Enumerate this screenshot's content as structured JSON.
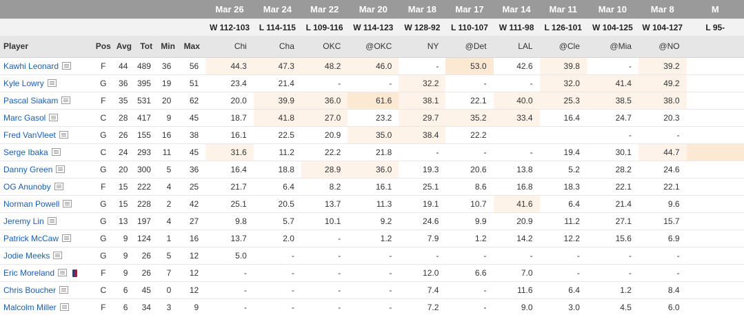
{
  "columns": {
    "player": "Player",
    "pos": "Pos",
    "avg": "Avg",
    "tot": "Tot",
    "min": "Min",
    "max": "Max"
  },
  "games": [
    {
      "date": "Mar 26",
      "result": "W 112-103",
      "opp": "Chi"
    },
    {
      "date": "Mar 24",
      "result": "L 114-115",
      "opp": "Cha"
    },
    {
      "date": "Mar 22",
      "result": "L 109-116",
      "opp": "OKC"
    },
    {
      "date": "Mar 20",
      "result": "W 114-123",
      "opp": "@OKC"
    },
    {
      "date": "Mar 18",
      "result": "W 128-92",
      "opp": "NY"
    },
    {
      "date": "Mar 17",
      "result": "L 110-107",
      "opp": "@Det"
    },
    {
      "date": "Mar 14",
      "result": "W 111-98",
      "opp": "LAL"
    },
    {
      "date": "Mar 11",
      "result": "L 126-101",
      "opp": "@Cle"
    },
    {
      "date": "Mar 10",
      "result": "W 104-125",
      "opp": "@Mia"
    },
    {
      "date": "Mar 8",
      "result": "W 104-127",
      "opp": "@NO"
    },
    {
      "date": "M",
      "result": "L 95-",
      "opp": ""
    }
  ],
  "players": [
    {
      "name": "Kawhi Leonard",
      "pos": "F",
      "avg": "44",
      "tot": "489",
      "min": "36",
      "max": "56",
      "scores": [
        "44.3",
        "47.3",
        "48.2",
        "46.0",
        "-",
        "53.0",
        "42.6",
        "39.8",
        "-",
        "39.2",
        ""
      ],
      "heat": [
        1,
        1,
        1,
        1,
        0,
        2,
        0,
        1,
        0,
        1,
        0
      ]
    },
    {
      "name": "Kyle Lowry",
      "pos": "G",
      "avg": "36",
      "tot": "395",
      "min": "19",
      "max": "51",
      "scores": [
        "23.4",
        "21.4",
        "-",
        "-",
        "32.2",
        "-",
        "-",
        "32.0",
        "41.4",
        "49.2",
        ""
      ],
      "heat": [
        0,
        0,
        0,
        0,
        1,
        0,
        0,
        1,
        1,
        1,
        0
      ]
    },
    {
      "name": "Pascal Siakam",
      "pos": "F",
      "avg": "35",
      "tot": "531",
      "min": "20",
      "max": "62",
      "scores": [
        "20.0",
        "39.9",
        "36.0",
        "61.6",
        "38.1",
        "22.1",
        "40.0",
        "25.3",
        "38.5",
        "38.0",
        ""
      ],
      "heat": [
        0,
        1,
        1,
        2,
        1,
        0,
        1,
        1,
        1,
        1,
        0
      ]
    },
    {
      "name": "Marc Gasol",
      "pos": "C",
      "avg": "28",
      "tot": "417",
      "min": "9",
      "max": "45",
      "scores": [
        "18.7",
        "41.8",
        "27.0",
        "23.2",
        "29.7",
        "35.2",
        "33.4",
        "16.4",
        "24.7",
        "20.3",
        ""
      ],
      "heat": [
        0,
        1,
        1,
        0,
        1,
        1,
        1,
        0,
        0,
        0,
        0
      ]
    },
    {
      "name": "Fred VanVleet",
      "pos": "G",
      "avg": "26",
      "tot": "155",
      "min": "16",
      "max": "38",
      "scores": [
        "16.1",
        "22.5",
        "20.9",
        "35.0",
        "38.4",
        "22.2",
        "",
        "",
        "-",
        "-",
        ""
      ],
      "heat": [
        0,
        0,
        0,
        1,
        1,
        0,
        0,
        0,
        0,
        0,
        0
      ]
    },
    {
      "name": "Serge Ibaka",
      "pos": "C",
      "avg": "24",
      "tot": "293",
      "min": "11",
      "max": "45",
      "scores": [
        "31.6",
        "11.2",
        "22.2",
        "21.8",
        "-",
        "-",
        "-",
        "19.4",
        "30.1",
        "44.7",
        ""
      ],
      "heat": [
        1,
        0,
        0,
        0,
        0,
        0,
        0,
        0,
        0,
        1,
        2
      ]
    },
    {
      "name": "Danny Green",
      "pos": "G",
      "avg": "20",
      "tot": "300",
      "min": "5",
      "max": "36",
      "scores": [
        "16.4",
        "18.8",
        "28.9",
        "36.0",
        "19.3",
        "20.6",
        "13.8",
        "5.2",
        "28.2",
        "24.6",
        ""
      ],
      "heat": [
        0,
        0,
        1,
        1,
        0,
        0,
        0,
        0,
        0,
        0,
        0
      ]
    },
    {
      "name": "OG Anunoby",
      "pos": "F",
      "avg": "15",
      "tot": "222",
      "min": "4",
      "max": "25",
      "scores": [
        "21.7",
        "6.4",
        "8.2",
        "16.1",
        "25.1",
        "8.6",
        "16.8",
        "18.3",
        "22.1",
        "22.1",
        ""
      ],
      "heat": [
        0,
        0,
        0,
        0,
        0,
        0,
        0,
        0,
        0,
        0,
        0
      ]
    },
    {
      "name": "Norman Powell",
      "pos": "G",
      "avg": "15",
      "tot": "228",
      "min": "2",
      "max": "42",
      "scores": [
        "25.1",
        "20.5",
        "13.7",
        "11.3",
        "19.1",
        "10.7",
        "41.6",
        "6.4",
        "21.4",
        "9.6",
        ""
      ],
      "heat": [
        0,
        0,
        0,
        0,
        0,
        0,
        1,
        0,
        0,
        0,
        0
      ]
    },
    {
      "name": "Jeremy Lin",
      "pos": "G",
      "avg": "13",
      "tot": "197",
      "min": "4",
      "max": "27",
      "scores": [
        "9.8",
        "5.7",
        "10.1",
        "9.2",
        "24.6",
        "9.9",
        "20.9",
        "11.2",
        "27.1",
        "15.7",
        ""
      ],
      "heat": [
        0,
        0,
        0,
        0,
        0,
        0,
        0,
        0,
        0,
        0,
        0
      ]
    },
    {
      "name": "Patrick McCaw",
      "pos": "G",
      "avg": "9",
      "tot": "124",
      "min": "1",
      "max": "16",
      "scores": [
        "13.7",
        "2.0",
        "-",
        "1.2",
        "7.9",
        "1.2",
        "14.2",
        "12.2",
        "15.6",
        "6.9",
        ""
      ],
      "heat": [
        0,
        0,
        0,
        0,
        0,
        0,
        0,
        0,
        0,
        0,
        0
      ]
    },
    {
      "name": "Jodie Meeks",
      "pos": "G",
      "avg": "9",
      "tot": "26",
      "min": "5",
      "max": "12",
      "scores": [
        "5.0",
        "-",
        "-",
        "-",
        "-",
        "-",
        "-",
        "-",
        "-",
        "-",
        ""
      ],
      "heat": [
        0,
        0,
        0,
        0,
        0,
        0,
        0,
        0,
        0,
        0,
        0
      ]
    },
    {
      "name": "Eric Moreland",
      "pos": "F",
      "avg": "9",
      "tot": "26",
      "min": "7",
      "max": "12",
      "nba_logo": true,
      "scores": [
        "-",
        "-",
        "-",
        "-",
        "12.0",
        "6.6",
        "7.0",
        "-",
        "-",
        "-",
        ""
      ],
      "heat": [
        0,
        0,
        0,
        0,
        0,
        0,
        0,
        0,
        0,
        0,
        0
      ]
    },
    {
      "name": "Chris Boucher",
      "pos": "C",
      "avg": "6",
      "tot": "45",
      "min": "0",
      "max": "12",
      "scores": [
        "-",
        "-",
        "-",
        "-",
        "7.4",
        "-",
        "11.6",
        "6.4",
        "1.2",
        "8.4",
        ""
      ],
      "heat": [
        0,
        0,
        0,
        0,
        0,
        0,
        0,
        0,
        0,
        0,
        0
      ]
    },
    {
      "name": "Malcolm Miller",
      "pos": "F",
      "avg": "6",
      "tot": "34",
      "min": "3",
      "max": "9",
      "scores": [
        "-",
        "-",
        "-",
        "-",
        "7.2",
        "-",
        "9.0",
        "3.0",
        "4.5",
        "6.0",
        ""
      ],
      "heat": [
        0,
        0,
        0,
        0,
        0,
        0,
        0,
        0,
        0,
        0,
        0
      ]
    }
  ]
}
